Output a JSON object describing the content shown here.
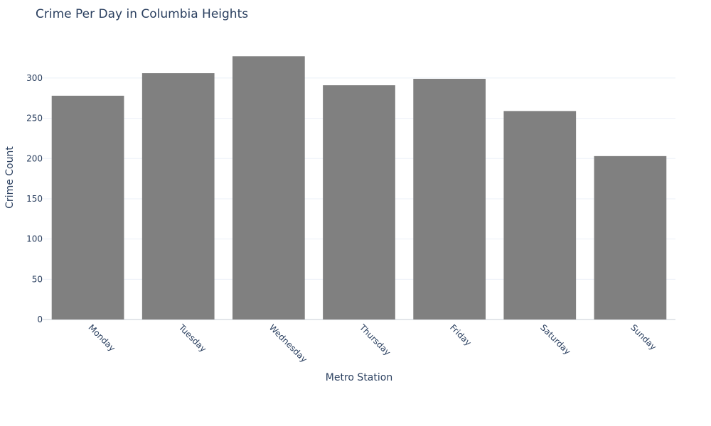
{
  "chart_data": {
    "type": "bar",
    "title": "Crime Per Day in Columbia Heights",
    "xlabel": "Metro Station",
    "ylabel": "Crime Count",
    "categories": [
      "Monday",
      "Tuesday",
      "Wednesday",
      "Thursday",
      "Friday",
      "Saturday",
      "Sunday"
    ],
    "values": [
      278,
      306,
      327,
      291,
      299,
      259,
      203
    ],
    "ylim": [
      0,
      344
    ],
    "yticks": [
      0,
      50,
      100,
      150,
      200,
      250,
      300
    ],
    "grid": true,
    "bar_color": "#808080"
  }
}
